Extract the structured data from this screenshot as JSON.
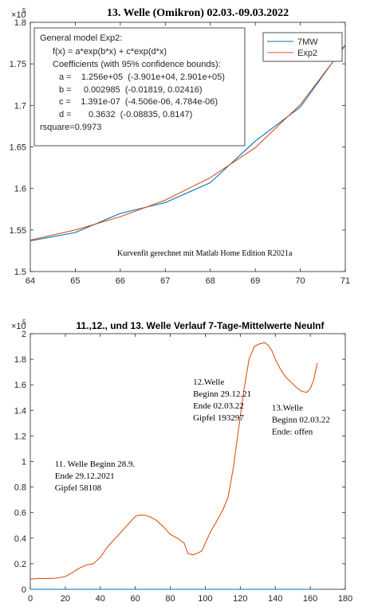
{
  "chart_data": [
    {
      "type": "line",
      "title": "13. Welle (Omikron) 02.03.-09.03.2022",
      "y_exponent_label": "×10",
      "y_exponent": "5",
      "xlim": [
        64,
        71
      ],
      "ylim": [
        1.5,
        1.8
      ],
      "x_ticks": [
        "64",
        "65",
        "66",
        "67",
        "68",
        "69",
        "70",
        "71"
      ],
      "y_ticks": [
        "1.5",
        "1.55",
        "1.6",
        "1.65",
        "1.7",
        "1.75",
        "1.8"
      ],
      "grid": false,
      "legend_position": "top-right",
      "series": [
        {
          "name": "7MW",
          "color": "#0072BD",
          "x": [
            64,
            65,
            66,
            67,
            68,
            69,
            70,
            71
          ],
          "y": [
            1.537,
            1.547,
            1.57,
            1.583,
            1.607,
            1.657,
            1.698,
            1.773
          ]
        },
        {
          "name": "Exp2",
          "color": "#D95319",
          "x": [
            64,
            65,
            66,
            67,
            68,
            69,
            70,
            71
          ],
          "y": [
            1.538,
            1.55,
            1.566,
            1.586,
            1.613,
            1.649,
            1.701,
            1.772
          ]
        }
      ],
      "fit_box": [
        "General model Exp2:",
        "f(x) = a*exp(b*x) + c*exp(d*x)",
        "Coefficients (with 95% confidence bounds):",
        "a =    1.256e+05  (-3.901e+04, 2.901e+05)",
        "b =     0.002985  (-0.01819, 0.02416)",
        "c =    1.391e-07  (-4.506e-06, 4.784e-06)",
        "d =       0.3632  (-0.08835, 0.8147)",
        "rsquare=0.9973"
      ],
      "annotation": "Kurvenfit gerechnet mit Matlab Home Edition R2021a"
    },
    {
      "type": "line",
      "title": "11.,12., und 13. Welle Verlauf 7-Tage-Mittelwerte NeuInf",
      "y_exponent_label": "×10",
      "y_exponent": "5",
      "xlim": [
        0,
        180
      ],
      "ylim": [
        0,
        2
      ],
      "x_ticks": [
        "0",
        "20",
        "40",
        "60",
        "80",
        "100",
        "120",
        "140",
        "160",
        "180"
      ],
      "y_ticks": [
        "0",
        "0.2",
        "0.4",
        "0.6",
        "0.8",
        "1",
        "1.2",
        "1.4",
        "1.6",
        "1.8",
        "2"
      ],
      "grid": false,
      "series": [
        {
          "color": "#D95319",
          "x": [
            0,
            5,
            10,
            15,
            20,
            24,
            28,
            32,
            36,
            40,
            44,
            48,
            52,
            56,
            60,
            62,
            65,
            68,
            72,
            76,
            80,
            84,
            88,
            90,
            93,
            95,
            98,
            100,
            103,
            106,
            110,
            113,
            116,
            119,
            122,
            125,
            128,
            131,
            134,
            136,
            138,
            140,
            143,
            146,
            149,
            152,
            155,
            158,
            160,
            162,
            164
          ],
          "y": [
            0.08,
            0.085,
            0.085,
            0.087,
            0.1,
            0.13,
            0.165,
            0.19,
            0.2,
            0.25,
            0.33,
            0.39,
            0.45,
            0.51,
            0.57,
            0.58,
            0.58,
            0.57,
            0.54,
            0.49,
            0.43,
            0.4,
            0.36,
            0.28,
            0.27,
            0.28,
            0.3,
            0.36,
            0.45,
            0.52,
            0.62,
            0.72,
            0.95,
            1.25,
            1.55,
            1.8,
            1.9,
            1.92,
            1.93,
            1.91,
            1.87,
            1.8,
            1.72,
            1.66,
            1.62,
            1.58,
            1.55,
            1.54,
            1.57,
            1.64,
            1.77
          ]
        },
        {
          "color": "#0072BD",
          "x": [
            0,
            164
          ],
          "y": [
            0,
            0
          ]
        }
      ],
      "annotations": [
        {
          "lines": [
            "11. Welle Beginn 28.9.",
            "Ende 29.12.2021",
            "Gipfel 58108"
          ],
          "x": 14,
          "y": 0.96
        },
        {
          "lines": [
            "12.Welle",
            "Beginn 29.12.21",
            "Ende 02.03.22",
            "Gipfel 193297"
          ],
          "x": 93,
          "y": 1.6
        },
        {
          "lines": [
            "13.Welle",
            "Beginn 02.03.22",
            "Ende: offen"
          ],
          "x": 138,
          "y": 1.4
        }
      ]
    }
  ]
}
